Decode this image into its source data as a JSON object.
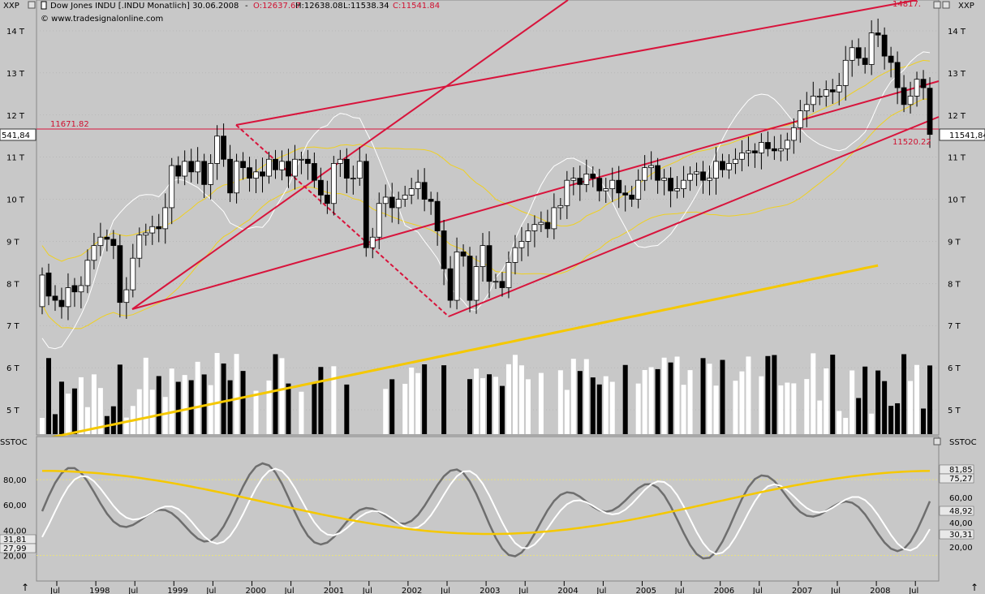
{
  "header": {
    "symbol_menu": "XXP",
    "instrument": "Dow Jones INDU [.INDU  Monatlich] 30.06.2008",
    "ohlc": "O:12637.67 H:12638.08 L:11538.34 C:11541.84",
    "open": "O:12637.67",
    "high": "H:12638.08",
    "low": "L:11538.34",
    "close": "C:11541.84",
    "watermark": "© www.tradesignalonline.com",
    "right_menu": "XXP",
    "stoch_label": "SSTOC",
    "stoch_label_right": "SSTOC"
  },
  "chart_data": [
    {
      "type": "candlestick",
      "title": "Dow Jones INDU [.INDU  Monatlich] 30.06.2008",
      "ylim": [
        4500,
        15000
      ],
      "y_ticks": [
        "5 T",
        "6 T",
        "7 T",
        "8 T",
        "9 T",
        "10 T",
        "11 T",
        "12 T",
        "13 T",
        "14 T"
      ],
      "y_tick_values": [
        5000,
        6000,
        7000,
        8000,
        9000,
        10000,
        11000,
        12000,
        13000,
        14000
      ],
      "x_ticks": [
        "Jul",
        "1998",
        "Jul",
        "1999",
        "Jul",
        "2000",
        "Jul",
        "2001",
        "Jul",
        "2002",
        "Jul",
        "2003",
        "Jul",
        "2004",
        "Jul",
        "2005",
        "Jul",
        "2006",
        "Jul",
        "2007",
        "Jul",
        "2008",
        "Jul"
      ],
      "x_range": [
        "1997-06",
        "2008-10"
      ],
      "close": [
        8200,
        7700,
        7600,
        7450,
        7900,
        7800,
        7950,
        8550,
        8900,
        9100,
        9050,
        8900,
        7550,
        7850,
        8600,
        9150,
        9200,
        9350,
        9300,
        9800,
        10800,
        10550,
        10900,
        10650,
        10900,
        10350,
        10850,
        11500,
        10950,
        10150,
        10900,
        10750,
        10500,
        10650,
        10550,
        10950,
        10700,
        10900,
        10550,
        10950,
        10950,
        10850,
        10450,
        10100,
        9900,
        10850,
        10950,
        10500,
        10500,
        10900,
        8850,
        9100,
        9900,
        10050,
        9800,
        10000,
        10100,
        10250,
        10400,
        10000,
        9950,
        9250,
        8350,
        7600,
        8750,
        8650,
        7600,
        8400,
        8900,
        8050,
        8050,
        7900,
        8500,
        8850,
        9000,
        9250,
        9400,
        9450,
        9300,
        9800,
        9850,
        10450,
        10500,
        10350,
        10600,
        10500,
        10200,
        10250,
        10450,
        10150,
        10100,
        10000,
        10450,
        10750,
        10800,
        10450,
        10500,
        10200,
        10250,
        10450,
        10600,
        10650,
        10450,
        10500,
        10900,
        10700,
        10850,
        10950,
        11100,
        11150,
        11100,
        11350,
        11200,
        11150,
        11200,
        11400,
        11700,
        12100,
        12250,
        12450,
        12450,
        12600,
        12550,
        12700,
        13300,
        13600,
        13350,
        13200,
        13950,
        13900,
        13400,
        13250,
        12650,
        12250,
        12450,
        12850,
        12650,
        11540
      ],
      "open": [
        7450,
        8250,
        7700,
        7600,
        7450,
        7950,
        7800,
        7950,
        8550,
        8900,
        9100,
        9050,
        8900,
        7550,
        7850,
        8600,
        9150,
        9200,
        9350,
        9300,
        9800,
        10800,
        10550,
        10900,
        10650,
        10900,
        10350,
        10850,
        11500,
        10950,
        10150,
        10900,
        10750,
        10500,
        10650,
        10550,
        10950,
        10700,
        10900,
        10550,
        10950,
        10950,
        10850,
        10450,
        10100,
        9900,
        10850,
        10950,
        10500,
        10500,
        10900,
        8850,
        9100,
        9900,
        10050,
        9800,
        10000,
        10100,
        10250,
        10400,
        10000,
        9950,
        9250,
        8350,
        7600,
        8750,
        8650,
        7600,
        8400,
        8900,
        8050,
        8050,
        7900,
        8500,
        8850,
        9000,
        9250,
        9400,
        9450,
        9300,
        9800,
        9850,
        10450,
        10500,
        10350,
        10600,
        10500,
        10200,
        10250,
        10450,
        10150,
        10100,
        10000,
        10450,
        10750,
        10800,
        10450,
        10500,
        10200,
        10250,
        10450,
        10600,
        10650,
        10450,
        10500,
        10900,
        10700,
        10850,
        10950,
        11100,
        11150,
        11100,
        11350,
        11200,
        11150,
        11200,
        11400,
        11700,
        12100,
        12250,
        12450,
        12450,
        12600,
        12550,
        12700,
        13300,
        13600,
        13350,
        13200,
        13950,
        13900,
        13400,
        13250,
        12650,
        12250,
        12450,
        12850,
        12637.67
      ],
      "start": "1997-06",
      "frequency": "monthly",
      "series": [
        {
          "name": "Volume",
          "color": "#000000"
        },
        {
          "name": "Bollinger / envelope",
          "color": "#f2d020"
        },
        {
          "name": "Moving average long",
          "color": "#f2d020"
        }
      ],
      "annotations": [
        {
          "text": "11671.82",
          "value": 11671.82,
          "color": "#d01030"
        },
        {
          "text": "11520.22",
          "value": 11520.22,
          "color": "#d01030"
        },
        {
          "text": "14817.",
          "value": 14817,
          "color": "#d01030"
        },
        {
          "text": "11541,84",
          "value": 11541.84
        }
      ],
      "left_price_tag": "541,84"
    },
    {
      "type": "line",
      "title": "SSTOC",
      "ylim": [
        10,
        100
      ],
      "y_ticks": [
        "20,00",
        "40,00",
        "60,00",
        "80,00"
      ],
      "y_tick_values": [
        20,
        40,
        60,
        80
      ],
      "right_labels": [
        "81,85",
        "75,27",
        "60,00",
        "48,92",
        "40,00",
        "30,31",
        "20,00"
      ],
      "left_labels": [
        "31,81",
        "27,99"
      ],
      "guide_levels": [
        20,
        80
      ]
    }
  ],
  "colors": {
    "background": "#c8c8c8",
    "grid": "#a9a9a9",
    "channel": "#d8143c",
    "band": "#f0d020",
    "ma": "#f5c800",
    "white_line": "#ffffff"
  }
}
